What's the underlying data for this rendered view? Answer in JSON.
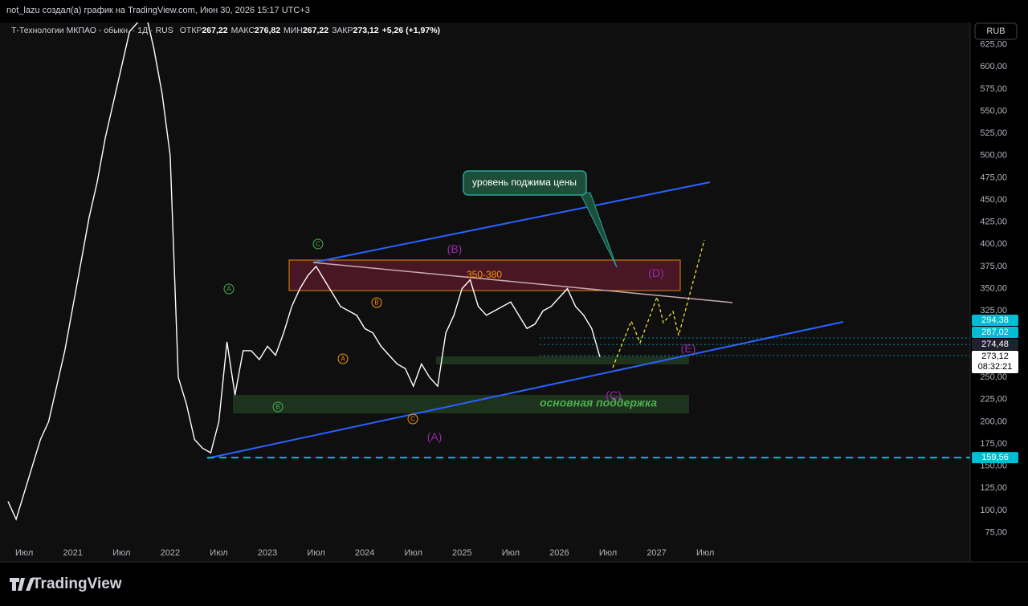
{
  "header": {
    "author_line": "not_lazu создал(а) график на TradingView.com, Июн 30, 2026 15:17 UTC+3",
    "symbol": "Т-Технологии МКПАО - обыкн. · 1Д · RUS",
    "ohlc": [
      {
        "key": "ОТКР",
        "value": "267,22"
      },
      {
        "key": "МАКС",
        "value": "276,82"
      },
      {
        "key": "МИН",
        "value": "267,22"
      },
      {
        "key": "ЗАКР",
        "value": "273,12"
      }
    ],
    "change": "+5,26 (+1,97%)",
    "currency": "RUB"
  },
  "footer": {
    "logo": "TradingView"
  },
  "chart_data": {
    "type": "line",
    "color": "#ffffff",
    "categories": [
      null,
      null,
      "Июл",
      null,
      null,
      null,
      null,
      null,
      "2021",
      null,
      null,
      null,
      null,
      null,
      "Июл",
      null,
      null,
      null,
      null,
      null,
      "2022",
      null,
      null,
      null,
      null,
      null,
      "Июл",
      null,
      null,
      null,
      null,
      null,
      "2023",
      null,
      null,
      null,
      null,
      null,
      "Июл",
      null,
      null,
      null,
      null,
      null,
      "2024",
      null,
      null,
      null,
      null,
      null,
      "Июл",
      null,
      null,
      null,
      null,
      null,
      "2025",
      null,
      null,
      null,
      null,
      null,
      "Июл",
      null,
      null,
      null,
      null,
      null,
      "2026",
      null,
      null,
      null,
      null,
      null,
      "Июл",
      null,
      null,
      null,
      null,
      null,
      "2027",
      null,
      null,
      null,
      null,
      null,
      "Июл"
    ],
    "values": [
      110,
      90,
      120,
      150,
      180,
      200,
      240,
      280,
      330,
      380,
      430,
      470,
      520,
      560,
      600,
      640,
      650,
      660,
      620,
      570,
      500,
      250,
      220,
      180,
      170,
      165,
      200,
      290,
      230,
      280,
      280,
      270,
      285,
      275,
      300,
      330,
      350,
      365,
      375,
      360,
      345,
      330,
      325,
      320,
      305,
      300,
      285,
      275,
      265,
      260,
      240,
      265,
      250,
      240,
      300,
      320,
      350,
      360,
      330,
      320,
      325,
      330,
      335,
      320,
      305,
      310,
      325,
      330,
      340,
      350,
      330,
      320,
      305,
      273.12,
      null,
      null,
      null,
      null,
      null,
      null,
      null,
      null,
      null,
      null,
      null,
      null,
      null
    ],
    "ylim": [
      42,
      650
    ],
    "yticks": [
      {
        "value": 75,
        "label": "75,00"
      },
      {
        "value": 100,
        "label": "100,00"
      },
      {
        "value": 125,
        "label": "125,00"
      },
      {
        "value": 150,
        "label": "150,00"
      },
      {
        "value": 175,
        "label": "175,00"
      },
      {
        "value": 200,
        "label": "200,00"
      },
      {
        "value": 225,
        "label": "225,00"
      },
      {
        "value": 250,
        "label": "250,00"
      },
      {
        "value": 275,
        "label": "275,00"
      },
      {
        "value": 300,
        "label": "300,00"
      },
      {
        "value": 325,
        "label": "325,00"
      },
      {
        "value": 350,
        "label": "350,00"
      },
      {
        "value": 375,
        "label": "375,00"
      },
      {
        "value": 400,
        "label": "400,00"
      },
      {
        "value": 425,
        "label": "425,00"
      },
      {
        "value": 450,
        "label": "450,00"
      },
      {
        "value": 475,
        "label": "475,00"
      },
      {
        "value": 500,
        "label": "500,00"
      },
      {
        "value": 525,
        "label": "525,00"
      },
      {
        "value": 550,
        "label": "550,00"
      },
      {
        "value": 575,
        "label": "575,00"
      },
      {
        "value": 600,
        "label": "600,00"
      },
      {
        "value": 625,
        "label": "625,00"
      }
    ],
    "price_labels": [
      {
        "value": 294.38,
        "label": "294,38",
        "color": "#00bcd4"
      },
      {
        "value": 287.02,
        "label": "287,02",
        "color": "#00bcd4"
      },
      {
        "value": 274.48,
        "label": "274,48",
        "color": "#1e222d"
      },
      {
        "value": 273.12,
        "label": "273,12",
        "color": "#ffffff"
      },
      {
        "value": 159.56,
        "label": "159,56",
        "color": "#00bcd4"
      }
    ],
    "countdown": "08:32:21",
    "wave_labels": [
      {
        "text": "A",
        "color": "#4caf50",
        "circled": true
      },
      {
        "text": "B",
        "color": "#4caf50",
        "circled": true
      },
      {
        "text": "C",
        "color": "#4caf50",
        "circled": true
      },
      {
        "text": "A",
        "color": "#ff9800",
        "circled": true
      },
      {
        "text": "B",
        "color": "#ff9800",
        "circled": true
      },
      {
        "text": "C",
        "color": "#ff9800",
        "circled": true
      },
      {
        "text": "(A)",
        "color": "#9c27b0",
        "circled": false
      },
      {
        "text": "(B)",
        "color": "#9c27b0",
        "circled": false
      },
      {
        "text": "(C)",
        "color": "#9c27b0",
        "circled": false
      },
      {
        "text": "(D)",
        "color": "#9c27b0",
        "circled": false
      },
      {
        "text": "(E)",
        "color": "#9c27b0",
        "circled": false
      }
    ],
    "annotations": {
      "zone": "350-380",
      "support": "основная поддержка",
      "callout": "уровень поджима цены"
    }
  }
}
